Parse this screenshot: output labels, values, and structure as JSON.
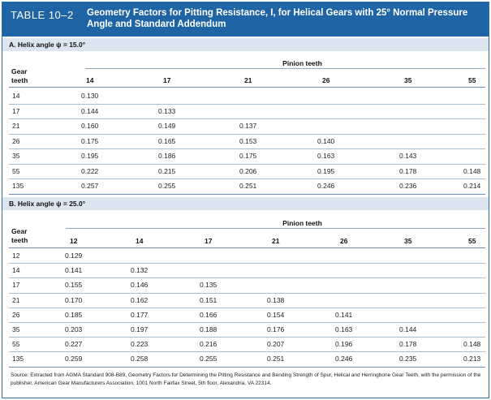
{
  "table_label": "TABLE 10–2",
  "table_title": "Geometry Factors for Pitting Resistance, I, for Helical Gears with 25° Normal Pressure Angle and Standard Addendum",
  "sections": [
    {
      "title": "A. Helix angle ψ = 15.0°",
      "pinion_header": "Pinion teeth",
      "gear_header_line1": "Gear",
      "gear_header_line2": "teeth",
      "columns": [
        "14",
        "17",
        "21",
        "26",
        "35",
        "55"
      ],
      "rows": [
        {
          "gear": "14",
          "values": [
            "0.130",
            "",
            "",
            "",
            "",
            ""
          ]
        },
        {
          "gear": "17",
          "values": [
            "0.144",
            "0.133",
            "",
            "",
            "",
            ""
          ]
        },
        {
          "gear": "21",
          "values": [
            "0.160",
            "0.149",
            "0.137",
            "",
            "",
            ""
          ]
        },
        {
          "gear": "26",
          "values": [
            "0.175",
            "0.165",
            "0.153",
            "0.140",
            "",
            ""
          ]
        },
        {
          "gear": "35",
          "values": [
            "0.195",
            "0.186",
            "0.175",
            "0.163",
            "0.143",
            ""
          ]
        },
        {
          "gear": "55",
          "values": [
            "0.222",
            "0.215",
            "0.206",
            "0.195",
            "0.178",
            "0.148"
          ]
        },
        {
          "gear": "135",
          "values": [
            "0.257",
            "0.255",
            "0.251",
            "0.246",
            "0.236",
            "0.214"
          ]
        }
      ]
    },
    {
      "title": "B. Helix angle ψ = 25.0°",
      "pinion_header": "Pinion teeth",
      "gear_header_line1": "Gear",
      "gear_header_line2": "teeth",
      "columns": [
        "12",
        "14",
        "17",
        "21",
        "26",
        "35",
        "55"
      ],
      "rows": [
        {
          "gear": "12",
          "values": [
            "0.129",
            "",
            "",
            "",
            "",
            "",
            ""
          ]
        },
        {
          "gear": "14",
          "values": [
            "0.141",
            "0.132",
            "",
            "",
            "",
            "",
            ""
          ]
        },
        {
          "gear": "17",
          "values": [
            "0.155",
            "0.146",
            "0.135",
            "",
            "",
            "",
            ""
          ]
        },
        {
          "gear": "21",
          "values": [
            "0.170",
            "0.162",
            "0.151",
            "0.138",
            "",
            "",
            ""
          ]
        },
        {
          "gear": "26",
          "values": [
            "0.185",
            "0.177",
            "0.166",
            "0.154",
            "0.141",
            "",
            ""
          ]
        },
        {
          "gear": "35",
          "values": [
            "0.203",
            "0.197",
            "0.188",
            "0.176",
            "0.163",
            "0.144",
            ""
          ]
        },
        {
          "gear": "55",
          "values": [
            "0.227",
            "0.223",
            "0.216",
            "0.207",
            "0.196",
            "0.178",
            "0.148"
          ]
        },
        {
          "gear": "135",
          "values": [
            "0.259",
            "0.258",
            "0.255",
            "0.251",
            "0.246",
            "0.235",
            "0.213"
          ]
        }
      ]
    }
  ],
  "source_note": "Source: Extracted from AGMA Standard 908-B89, Geometry Factors for Determining the Pitting Resistance and Bending Strength of Spur, Helical and Herringbone Gear Teeth, with the permission of the publisher, American Gear Manufacturers Association, 1001 North Fairfax Street, 5th floor, Alexandria, VA 22314.",
  "colors": {
    "header_bg": "#1f65a6",
    "section_bar_bg": "#dbe6f1",
    "rule_color": "#8fa9c4"
  }
}
